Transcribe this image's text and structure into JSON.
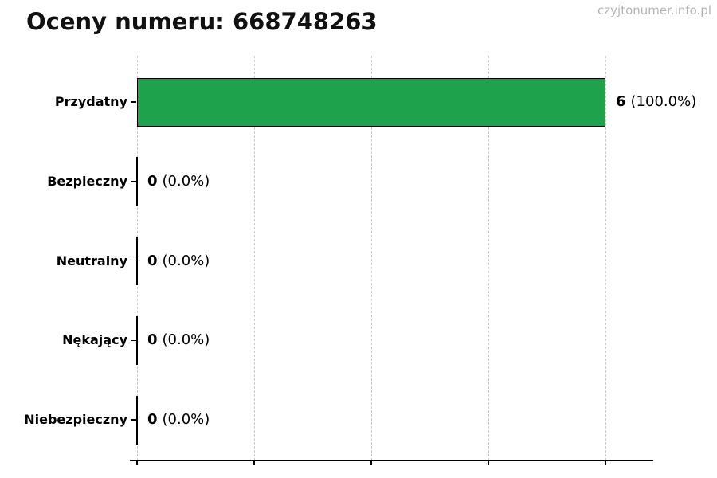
{
  "watermark": "czyjtonumer.info.pl",
  "chart_data": {
    "type": "bar",
    "orientation": "horizontal",
    "title": "Oceny numeru: 668748263",
    "categories": [
      "Przydatny",
      "Bezpieczny",
      "Neutralny",
      "Nękający",
      "Niebezpieczny"
    ],
    "values": [
      6,
      0,
      0,
      0,
      0
    ],
    "counts": [
      "6",
      "0",
      "0",
      "0",
      "0"
    ],
    "percent_labels": [
      "(100.0%)",
      "(0.0%)",
      "(0.0%)",
      "(0.0%)",
      "(0.0%)"
    ],
    "xlabel": "",
    "ylabel": "",
    "xlim": [
      0,
      6.6
    ],
    "x_ticks": [
      0,
      1.5,
      3.0,
      4.5,
      6.0
    ],
    "x_tick_labels_visible": false,
    "grid": "vertical-dashed",
    "legend": null,
    "bar_color": "#1ea24b",
    "bar_edge_color": "#000000",
    "grid_color": "#cccccc",
    "watermark_color": "#b5b5b5"
  }
}
